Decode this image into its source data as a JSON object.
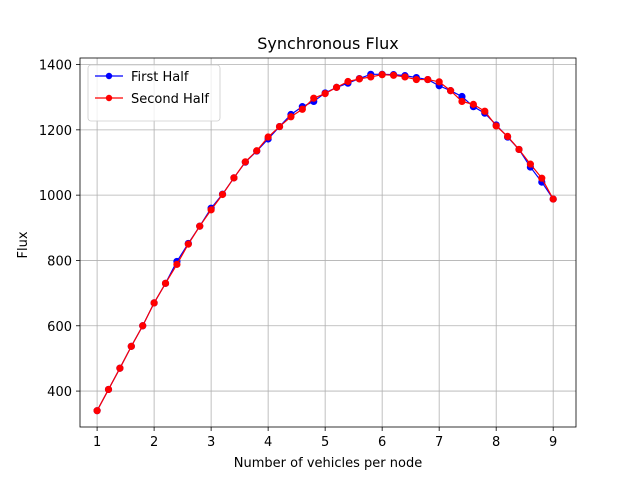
{
  "chart_data": {
    "type": "line",
    "title": "Synchronous Flux",
    "xlabel": "Number of vehicles per node",
    "ylabel": "Flux",
    "xlim": [
      0.7,
      9.4
    ],
    "ylim": [
      290,
      1420
    ],
    "xticks": [
      1,
      2,
      3,
      4,
      5,
      6,
      7,
      8,
      9
    ],
    "yticks": [
      400,
      600,
      800,
      1000,
      1200,
      1400
    ],
    "grid": true,
    "legend_position": "top-left",
    "x": [
      1.0,
      1.2,
      1.4,
      1.6,
      1.8,
      2.0,
      2.2,
      2.4,
      2.6,
      2.8,
      3.0,
      3.2,
      3.4,
      3.6,
      3.8,
      4.0,
      4.2,
      4.4,
      4.6,
      4.8,
      5.0,
      5.2,
      5.4,
      5.6,
      5.8,
      6.0,
      6.2,
      6.4,
      6.6,
      6.8,
      7.0,
      7.2,
      7.4,
      7.6,
      7.8,
      8.0,
      8.2,
      8.4,
      8.6,
      8.8,
      9.0
    ],
    "series": [
      {
        "name": "First Half",
        "color": "#0000ff",
        "values": [
          340,
          405,
          470,
          537,
          600,
          670,
          730,
          797,
          852,
          905,
          960,
          1003,
          1053,
          1101,
          1135,
          1172,
          1210,
          1247,
          1271,
          1287,
          1313,
          1330,
          1343,
          1357,
          1370,
          1370,
          1369,
          1366,
          1360,
          1354,
          1335,
          1320,
          1302,
          1271,
          1251,
          1215,
          1178,
          1140,
          1086,
          1040,
          988
        ]
      },
      {
        "name": "Second Half",
        "color": "#ff0000",
        "values": [
          340,
          405,
          470,
          537,
          600,
          670,
          730,
          788,
          850,
          905,
          955,
          1002,
          1053,
          1102,
          1136,
          1178,
          1210,
          1240,
          1263,
          1297,
          1311,
          1330,
          1348,
          1356,
          1362,
          1369,
          1367,
          1362,
          1354,
          1354,
          1347,
          1320,
          1287,
          1278,
          1257,
          1212,
          1180,
          1140,
          1095,
          1052,
          988
        ]
      }
    ]
  }
}
